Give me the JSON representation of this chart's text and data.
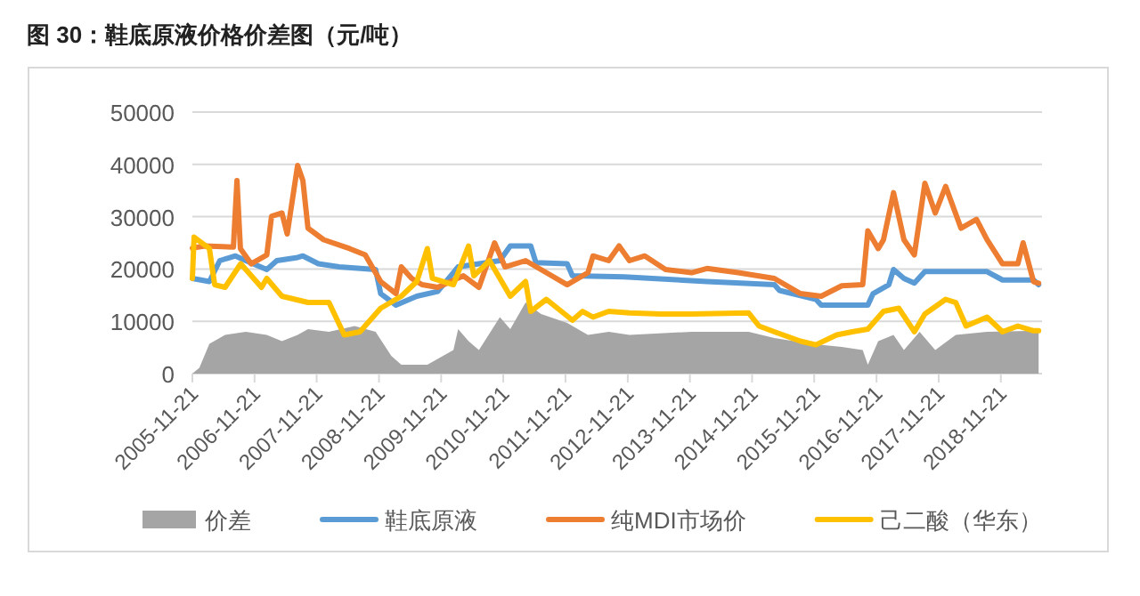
{
  "chart_data": {
    "type": "line",
    "title": "图 30：鞋底原液价格价差图（元/吨）",
    "xlim": [
      "2005-11-21",
      "2019-07-21"
    ],
    "xticks": [
      "2005-11-21",
      "2006-11-21",
      "2007-11-21",
      "2008-11-21",
      "2009-11-21",
      "2010-11-21",
      "2011-11-21",
      "2012-11-21",
      "2013-11-21",
      "2014-11-21",
      "2015-11-21",
      "2016-11-21",
      "2017-11-21",
      "2018-11-21"
    ],
    "ylim": [
      0,
      50000
    ],
    "yticks": [
      0,
      10000,
      20000,
      30000,
      40000,
      50000
    ],
    "grid": "y",
    "legend": "bottom",
    "series": [
      {
        "name": "价差",
        "type": "area",
        "color": "#a5a5a5",
        "x": [
          "2005-11-21",
          "2006-01",
          "2006-03",
          "2006-06",
          "2006-10",
          "2007-02",
          "2007-05",
          "2007-08",
          "2007-10",
          "2008-02",
          "2008-07",
          "2008-11",
          "2009-02",
          "2009-04",
          "2009-09",
          "2010-02",
          "2010-03",
          "2010-05",
          "2010-07",
          "2010-11",
          "2011-01",
          "2011-04",
          "2011-07",
          "2011-12",
          "2012-04",
          "2012-08",
          "2012-12",
          "2013-12",
          "2014-11",
          "2015-04",
          "2015-11",
          "2016-05",
          "2016-09",
          "2016-10",
          "2016-12",
          "2017-03",
          "2017-05",
          "2017-08",
          "2017-11",
          "2018-03",
          "2018-09",
          "2019-07"
        ],
        "values": [
          0,
          1100,
          5700,
          7400,
          8000,
          7400,
          6200,
          7400,
          8500,
          8000,
          9100,
          8000,
          3400,
          1700,
          1700,
          4500,
          8500,
          6200,
          4500,
          10800,
          8500,
          13600,
          11400,
          9700,
          7400,
          8000,
          7400,
          8000,
          8000,
          6800,
          5700,
          5100,
          4500,
          1700,
          6200,
          7400,
          4500,
          8000,
          4500,
          7400,
          8000,
          8200
        ]
      },
      {
        "name": "鞋底原液",
        "color": "#5b9bd5",
        "x": [
          "2005-11-21",
          "2006-03",
          "2006-05",
          "2006-08",
          "2006-10",
          "2007-02",
          "2007-04",
          "2007-08",
          "2007-09",
          "2007-12",
          "2008-04",
          "2008-11",
          "2008-12",
          "2009-03",
          "2009-07",
          "2009-11",
          "2010-03",
          "2010-11",
          "2011-01",
          "2011-05",
          "2011-06",
          "2011-12",
          "2012-01",
          "2012-11",
          "2014-03",
          "2015-04",
          "2015-05",
          "2015-12",
          "2016-01",
          "2016-10",
          "2016-11",
          "2017-02",
          "2017-03",
          "2017-05",
          "2017-07",
          "2017-09",
          "2018-09",
          "2018-12",
          "2019-06",
          "2019-07"
        ],
        "values": [
          18200,
          17600,
          21600,
          22500,
          21600,
          19900,
          21600,
          22200,
          22500,
          21000,
          20400,
          19900,
          15300,
          13100,
          14800,
          15700,
          20400,
          21600,
          24400,
          24400,
          21200,
          21000,
          18700,
          18500,
          17600,
          17000,
          15900,
          14200,
          13100,
          13100,
          15300,
          17000,
          19900,
          18200,
          17300,
          19500,
          19500,
          17900,
          17900,
          17000
        ]
      },
      {
        "name": "纯MDI市场价",
        "color": "#ed7d31",
        "x": [
          "2005-11-21",
          "2006-02",
          "2006-07-20",
          "2006-08-10",
          "2006-08-30",
          "2006-11",
          "2007-02",
          "2007-03",
          "2007-05",
          "2007-06",
          "2007-08",
          "2007-09",
          "2007-10",
          "2008-01",
          "2008-06",
          "2008-09",
          "2008-12",
          "2009-03",
          "2009-04",
          "2009-06",
          "2009-08",
          "2009-11",
          "2010-04",
          "2010-07",
          "2010-10",
          "2010-12",
          "2011-04",
          "2011-08",
          "2011-12",
          "2012-04",
          "2012-05",
          "2012-08",
          "2012-10",
          "2012-12",
          "2013-03",
          "2013-07",
          "2013-12",
          "2014-03",
          "2014-09",
          "2015-04",
          "2015-09",
          "2016-01",
          "2016-05",
          "2016-09",
          "2016-10",
          "2016-12",
          "2017-01",
          "2017-03",
          "2017-05",
          "2017-07",
          "2017-09",
          "2017-11",
          "2018-01",
          "2018-04",
          "2018-07",
          "2018-09",
          "2018-12",
          "2019-03",
          "2019-04",
          "2019-06",
          "2019-07"
        ],
        "values": [
          24000,
          24400,
          24200,
          36900,
          23900,
          21000,
          22700,
          30100,
          30700,
          26700,
          39800,
          36900,
          27800,
          25600,
          23900,
          22700,
          17600,
          15300,
          20400,
          18200,
          17000,
          16500,
          18700,
          16500,
          25000,
          20400,
          21600,
          19300,
          17000,
          19300,
          22500,
          21600,
          24400,
          21600,
          22500,
          19900,
          19300,
          20100,
          19300,
          18200,
          15300,
          14800,
          16800,
          17000,
          27300,
          23900,
          25600,
          34600,
          25600,
          22700,
          36400,
          30700,
          35800,
          27800,
          29500,
          25600,
          21000,
          21000,
          25000,
          17600,
          17300
        ]
      },
      {
        "name": "己二酸（华东）",
        "color": "#ffc000",
        "x": [
          "2005-11-21",
          "2005-12",
          "2006-03",
          "2006-04",
          "2006-06",
          "2006-09",
          "2007-01",
          "2007-02",
          "2007-05",
          "2007-10",
          "2008-02",
          "2008-05",
          "2008-08",
          "2008-12",
          "2009-04",
          "2009-07",
          "2009-09",
          "2009-10",
          "2010-02",
          "2010-05",
          "2010-06",
          "2010-09",
          "2011-01",
          "2011-04",
          "2011-05",
          "2011-08",
          "2012-01",
          "2012-03",
          "2012-05",
          "2012-08",
          "2012-12",
          "2013-06",
          "2013-12",
          "2014-11",
          "2015-01",
          "2015-04",
          "2015-09",
          "2015-12",
          "2016-04",
          "2016-07",
          "2016-10",
          "2017-01",
          "2017-04",
          "2017-07",
          "2017-09",
          "2018-01",
          "2018-03",
          "2018-05",
          "2018-09",
          "2018-12",
          "2019-03",
          "2019-06",
          "2019-07"
        ],
        "values": [
          18200,
          26100,
          23900,
          17000,
          16500,
          21000,
          16500,
          18200,
          14800,
          13600,
          13600,
          7400,
          8000,
          12500,
          14800,
          17600,
          23900,
          18200,
          17000,
          24400,
          18700,
          21600,
          14800,
          17600,
          11900,
          14200,
          10200,
          11900,
          10800,
          11900,
          11600,
          11400,
          11400,
          11600,
          9100,
          8000,
          6200,
          5500,
          7400,
          8000,
          8500,
          11900,
          12500,
          8000,
          11400,
          14200,
          13600,
          9100,
          10800,
          8000,
          9100,
          8200,
          8200
        ]
      }
    ]
  }
}
